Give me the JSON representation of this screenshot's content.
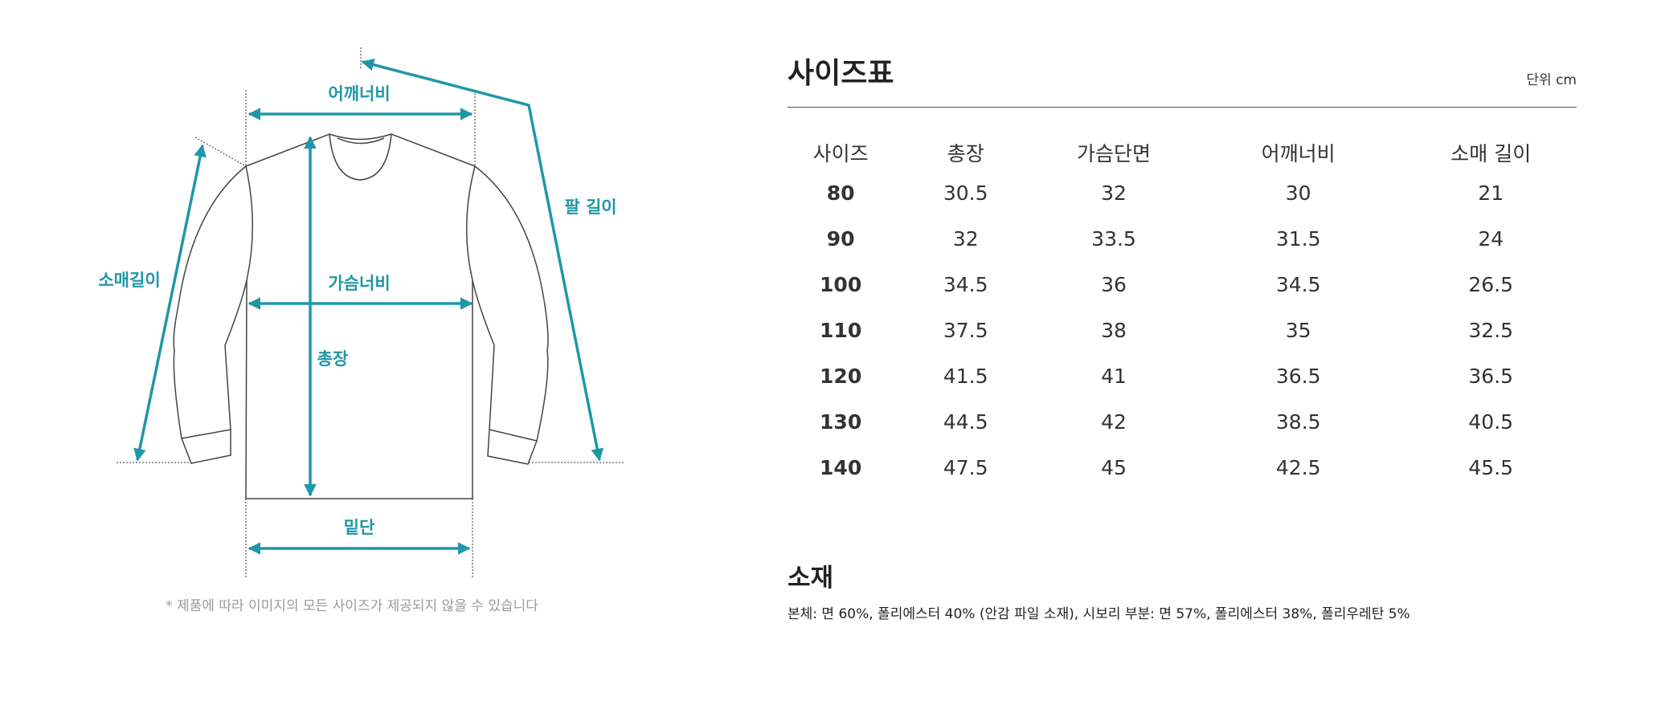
{
  "diagram": {
    "labels": {
      "shoulder": "어깨너비",
      "chest": "가슴너비",
      "length": "총장",
      "hem": "밑단",
      "sleeve": "소매길이",
      "arm": "팔 길이"
    },
    "accent_color": "#1f97a8",
    "note": "* 제품에 따라 이미지의 모든 사이즈가 제공되지 않을 수 있습니다"
  },
  "size_chart": {
    "title": "사이즈표",
    "unit": "단위 cm",
    "headers": [
      "사이즈",
      "총장",
      "가슴단면",
      "어깨너비",
      "소매 길이"
    ],
    "rows": [
      [
        "80",
        "30.5",
        "32",
        "30",
        "21"
      ],
      [
        "90",
        "32",
        "33.5",
        "31.5",
        "24"
      ],
      [
        "100",
        "34.5",
        "36",
        "34.5",
        "26.5"
      ],
      [
        "110",
        "37.5",
        "38",
        "35",
        "32.5"
      ],
      [
        "120",
        "41.5",
        "41",
        "36.5",
        "36.5"
      ],
      [
        "130",
        "44.5",
        "42",
        "38.5",
        "40.5"
      ],
      [
        "140",
        "47.5",
        "45",
        "42.5",
        "45.5"
      ]
    ]
  },
  "material": {
    "title": "소재",
    "text": "본체: 면 60%, 폴리에스터 40% (안감 파일 소재), 시보리 부분: 면 57%, 폴리에스터 38%, 폴리우레탄 5%"
  }
}
